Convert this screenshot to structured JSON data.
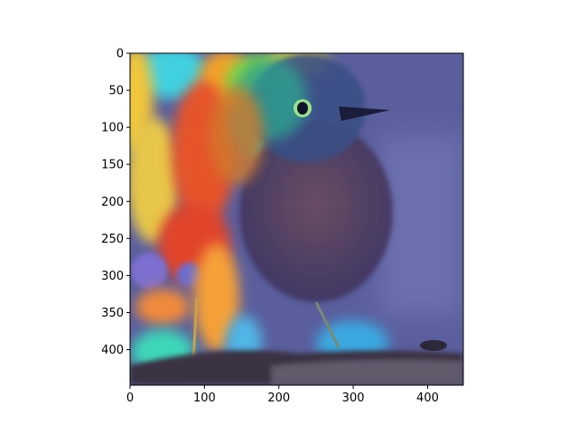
{
  "figure": {
    "image_subject": "bird photo with heatmap overlay",
    "colormap": "jet",
    "colors": {
      "background": "#ffffff",
      "axis": "#000000",
      "photo_background": "#5b5f9c",
      "branch": "#3a2f35"
    },
    "x_axis": {
      "ticks": [
        {
          "value": 0,
          "label": "0"
        },
        {
          "value": 100,
          "label": "100"
        },
        {
          "value": 200,
          "label": "200"
        },
        {
          "value": 300,
          "label": "300"
        },
        {
          "value": 400,
          "label": "400"
        }
      ],
      "range": [
        0,
        448
      ]
    },
    "y_axis": {
      "ticks": [
        {
          "value": 0,
          "label": "0"
        },
        {
          "value": 50,
          "label": "50"
        },
        {
          "value": 100,
          "label": "100"
        },
        {
          "value": 150,
          "label": "150"
        },
        {
          "value": 200,
          "label": "200"
        },
        {
          "value": 250,
          "label": "250"
        },
        {
          "value": 300,
          "label": "300"
        },
        {
          "value": 350,
          "label": "350"
        },
        {
          "value": 400,
          "label": "400"
        }
      ],
      "range": [
        0,
        448
      ],
      "inverted": true
    }
  }
}
